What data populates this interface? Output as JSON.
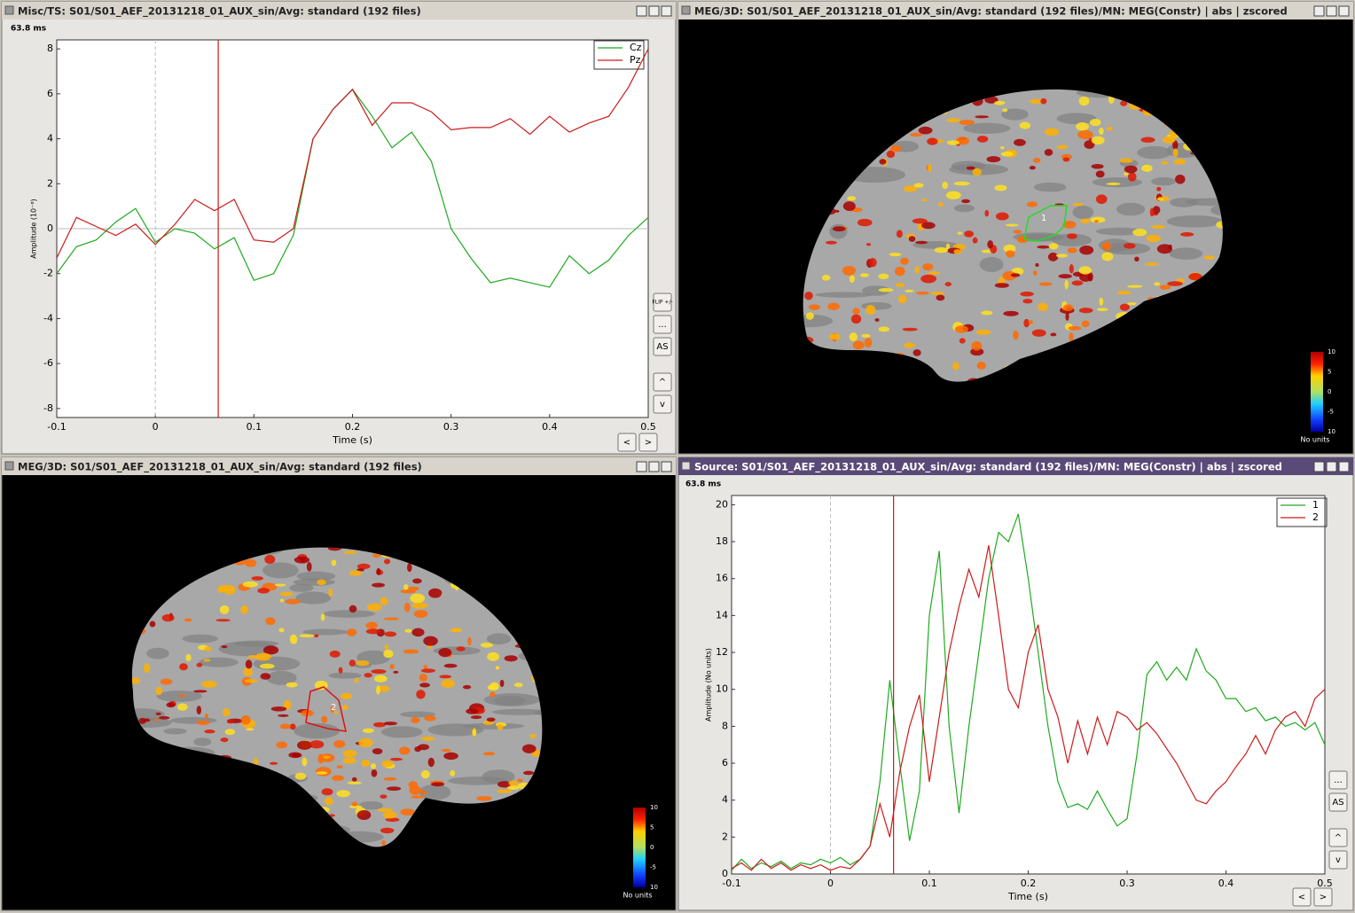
{
  "windows": [
    {
      "title": "Misc/TS: S01/S01_AEF_20131218_01_AUX_sin/Avg: standard (192 files)"
    },
    {
      "title": "MEG/3D: S01/S01_AEF_20131218_01_AUX_sin/Avg: standard (192 files)/MN: MEG(Constr) | abs | zscored"
    },
    {
      "title": "MEG/3D: S01/S01_AEF_20131218_01_AUX_sin/Avg: standard (192 files)"
    },
    {
      "title": "Source: S01/S01_AEF_20131218_01_AUX_sin/Avg: standard (192 files)/MN: MEG(Constr) | abs | zscored"
    }
  ],
  "time_label": "63.8 ms",
  "buttons": [
    [
      "FLIP +/-",
      "...",
      "AS",
      "^",
      "v",
      "<",
      ">"
    ],
    [
      "...",
      "AS",
      "^",
      "v",
      "<",
      ">"
    ]
  ],
  "colorbars": [
    {
      "ticks": [
        "10",
        "5",
        "0",
        "-5",
        "10"
      ],
      "unit": "No units"
    },
    {
      "ticks": [
        "10",
        "5",
        "0",
        "-5",
        "10"
      ],
      "unit": "No units"
    }
  ],
  "roi_labels": [
    "1",
    "2"
  ],
  "chart_data": [
    {
      "type": "line",
      "x_label": "Time (s)",
      "y_label": "Amplitude (10⁻⁶)",
      "cursor_x": 0.0638,
      "x": [
        -0.1,
        -0.08,
        -0.06,
        -0.04,
        -0.02,
        0,
        0.02,
        0.04,
        0.06,
        0.08,
        0.1,
        0.12,
        0.14,
        0.16,
        0.18,
        0.2,
        0.22,
        0.24,
        0.26,
        0.28,
        0.3,
        0.32,
        0.34,
        0.36,
        0.38,
        0.4,
        0.42,
        0.44,
        0.46,
        0.48,
        0.5
      ],
      "series": [
        {
          "name": "Cz",
          "color": "#1faa1f",
          "values": [
            -2,
            -0.8,
            -0.5,
            0.3,
            0.9,
            -0.6,
            0,
            -0.2,
            -0.9,
            -0.4,
            -2.3,
            -2.0,
            -0.3,
            4.0,
            5.3,
            6.2,
            5.0,
            3.6,
            4.3,
            3.0,
            0,
            -1.3,
            -2.4,
            -2.2,
            -2.4,
            -2.6,
            -1.2,
            -2.0,
            -1.4,
            -0.3,
            0.5
          ]
        },
        {
          "name": "Pz",
          "color": "#cc1a1a",
          "values": [
            -1.3,
            0.5,
            0.1,
            -0.3,
            0.2,
            -0.7,
            0.2,
            1.3,
            0.8,
            1.3,
            -0.5,
            -0.6,
            0.0,
            4.0,
            5.3,
            6.2,
            4.6,
            5.6,
            5.6,
            5.2,
            4.4,
            4.5,
            4.5,
            4.9,
            4.2,
            5.0,
            4.3,
            4.7,
            5.0,
            6.3,
            8.0
          ]
        }
      ],
      "xlim": [
        -0.1,
        0.5
      ],
      "xticks": [
        -0.1,
        0,
        0.1,
        0.2,
        0.3,
        0.4,
        0.5
      ],
      "ylim": [
        -8.4,
        8.4
      ],
      "yticks": [
        -8,
        -6,
        -4,
        -2,
        0,
        2,
        4,
        6,
        8
      ]
    },
    {
      "type": "line",
      "x_label": "Time (s)",
      "y_label": "Amplitude (No units)",
      "cursor_x": 0.0638,
      "x": [
        -0.1,
        -0.09,
        -0.08,
        -0.07,
        -0.06,
        -0.05,
        -0.04,
        -0.03,
        -0.02,
        -0.01,
        0,
        0.01,
        0.02,
        0.03,
        0.04,
        0.05,
        0.06,
        0.07,
        0.08,
        0.09,
        0.1,
        0.11,
        0.12,
        0.13,
        0.14,
        0.15,
        0.16,
        0.17,
        0.18,
        0.19,
        0.2,
        0.21,
        0.22,
        0.23,
        0.24,
        0.25,
        0.26,
        0.27,
        0.28,
        0.29,
        0.3,
        0.31,
        0.32,
        0.33,
        0.34,
        0.35,
        0.36,
        0.37,
        0.38,
        0.39,
        0.4,
        0.41,
        0.42,
        0.43,
        0.44,
        0.45,
        0.46,
        0.47,
        0.48,
        0.49,
        0.5
      ],
      "series": [
        {
          "name": "1",
          "color": "#1faa1f",
          "values": [
            0.2,
            0.8,
            0.3,
            0.6,
            0.4,
            0.7,
            0.3,
            0.6,
            0.5,
            0.8,
            0.6,
            0.9,
            0.5,
            0.8,
            1.5,
            5.0,
            10.5,
            6.0,
            1.8,
            4.5,
            14,
            17.5,
            8,
            3.3,
            8,
            12,
            16,
            18.5,
            18.0,
            19.5,
            16,
            12,
            8,
            5,
            3.6,
            3.8,
            3.5,
            4.5,
            3.5,
            2.6,
            3.0,
            6.5,
            10.8,
            11.5,
            10.5,
            11.2,
            10.5,
            12.2,
            11.0,
            10.5,
            9.5,
            9.5,
            8.8,
            9.0,
            8.3,
            8.5,
            8.0,
            8.2,
            7.8,
            8.2,
            7.0
          ]
        },
        {
          "name": "2",
          "color": "#cc1a1a",
          "values": [
            0.3,
            0.6,
            0.2,
            0.8,
            0.3,
            0.6,
            0.2,
            0.5,
            0.3,
            0.5,
            0.2,
            0.4,
            0.3,
            0.8,
            1.5,
            3.8,
            2.0,
            5.5,
            8.0,
            9.7,
            5.0,
            8.5,
            12.0,
            14.5,
            16.5,
            15.0,
            17.8,
            14.0,
            10.0,
            9.0,
            12.0,
            13.5,
            10,
            8.5,
            6.0,
            8.3,
            6.5,
            8.5,
            7.0,
            8.8,
            8.5,
            7.8,
            8.2,
            7.6,
            6.8,
            6.0,
            5.0,
            4.0,
            3.8,
            4.5,
            5.0,
            5.8,
            6.5,
            7.5,
            6.5,
            7.8,
            8.5,
            8.8,
            8.0,
            9.5,
            10.0
          ]
        }
      ],
      "xlim": [
        -0.1,
        0.5
      ],
      "xticks": [
        -0.1,
        0,
        0.1,
        0.2,
        0.3,
        0.4,
        0.5
      ],
      "ylim": [
        0,
        20.5
      ],
      "yticks": [
        0,
        2,
        4,
        6,
        8,
        10,
        12,
        14,
        16,
        18,
        20
      ]
    }
  ]
}
